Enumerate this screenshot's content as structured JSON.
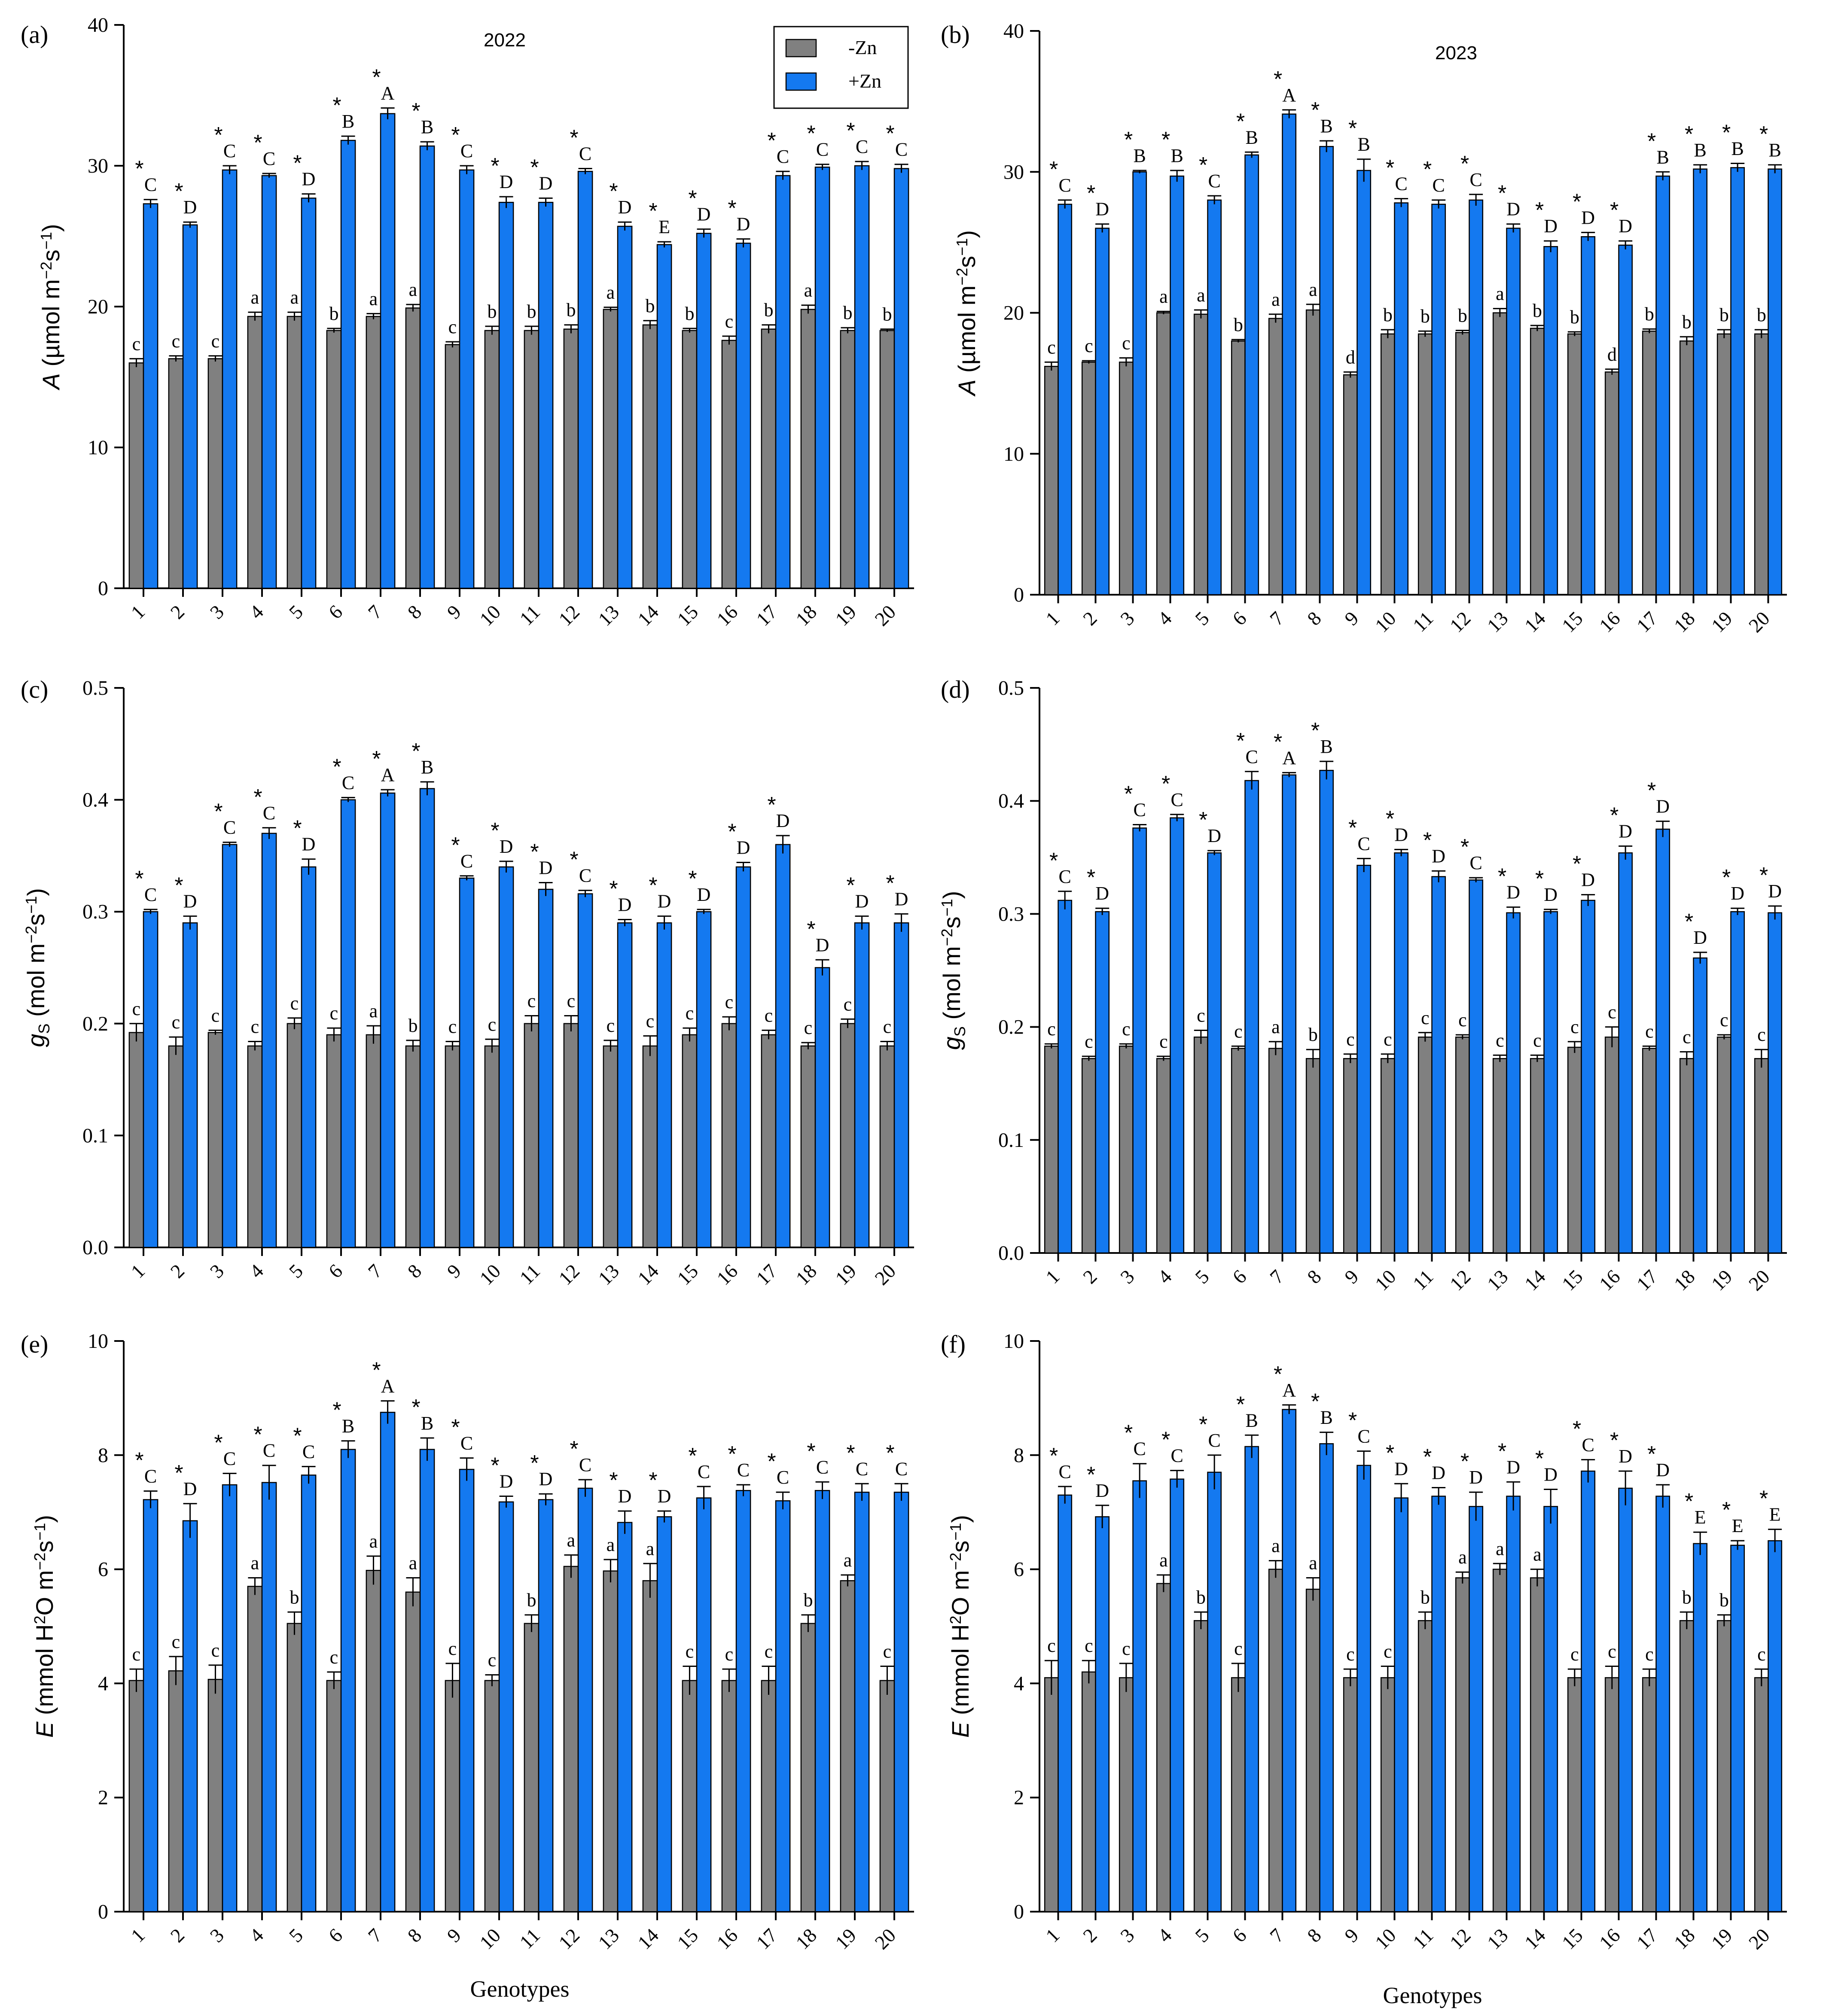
{
  "legend": {
    "minus": "-Zn",
    "plus": "+Zn"
  },
  "colors": {
    "minus": "#808080",
    "plus": "#1479f0",
    "axis": "#000000"
  },
  "x_title": "Genotypes",
  "chart_data": [
    {
      "id": "a",
      "letter": "(a)",
      "year": "2022",
      "type": "bar",
      "ylabel": "A (µmol m⁻² s⁻¹)",
      "ylabel_italic": "A",
      "ylabel_rest": " (µmol m",
      "ylim": [
        0,
        40
      ],
      "yticks": [
        0,
        10,
        20,
        30,
        40
      ],
      "ytick_labels": [
        "0",
        "10",
        "20",
        "30",
        "40"
      ],
      "categories": [
        "1",
        "2",
        "3",
        "4",
        "5",
        "6",
        "7",
        "8",
        "9",
        "10",
        "11",
        "12",
        "13",
        "14",
        "15",
        "16",
        "17",
        "18",
        "19",
        "20"
      ],
      "series": [
        {
          "name": "-Zn",
          "values": [
            16.0,
            16.3,
            16.3,
            19.3,
            19.3,
            18.3,
            19.3,
            19.9,
            17.3,
            18.3,
            18.3,
            18.4,
            19.8,
            18.7,
            18.3,
            17.6,
            18.4,
            19.8,
            18.3,
            18.3
          ],
          "errors": [
            0.3,
            0.2,
            0.2,
            0.3,
            0.3,
            0.15,
            0.2,
            0.25,
            0.2,
            0.3,
            0.3,
            0.3,
            0.15,
            0.3,
            0.15,
            0.3,
            0.3,
            0.3,
            0.2,
            0.1
          ],
          "letters": [
            "c",
            "c",
            "c",
            "a",
            "a",
            "b",
            "a",
            "a",
            "c",
            "b",
            "b",
            "b",
            "a",
            "b",
            "b",
            "c",
            "b",
            "a",
            "b",
            "b"
          ]
        },
        {
          "name": "+Zn",
          "values": [
            27.3,
            25.8,
            29.7,
            29.3,
            27.7,
            31.8,
            33.7,
            31.4,
            29.7,
            27.4,
            27.4,
            29.6,
            25.7,
            24.4,
            25.2,
            24.5,
            29.3,
            29.9,
            30.0,
            29.8
          ],
          "errors": [
            0.3,
            0.2,
            0.3,
            0.15,
            0.3,
            0.3,
            0.4,
            0.3,
            0.3,
            0.4,
            0.3,
            0.2,
            0.3,
            0.2,
            0.3,
            0.3,
            0.3,
            0.2,
            0.3,
            0.3
          ],
          "letters": [
            "C",
            "D",
            "C",
            "C",
            "D",
            "B",
            "A",
            "B",
            "C",
            "D",
            "D",
            "C",
            "D",
            "E",
            "D",
            "D",
            "C",
            "C",
            "C",
            "C"
          ]
        }
      ]
    },
    {
      "id": "b",
      "letter": "(b)",
      "year": "2023",
      "type": "bar",
      "ylabel": "A (µmol m⁻² s⁻¹)",
      "ylabel_italic": "A",
      "ylabel_rest": " (µmol m",
      "ylim": [
        0,
        40
      ],
      "yticks": [
        0,
        10,
        20,
        30,
        40
      ],
      "ytick_labels": [
        "0",
        "10",
        "20",
        "30",
        "40"
      ],
      "categories": [
        "1",
        "2",
        "3",
        "4",
        "5",
        "6",
        "7",
        "8",
        "9",
        "10",
        "11",
        "12",
        "13",
        "14",
        "15",
        "16",
        "17",
        "18",
        "19",
        "20"
      ],
      "series": [
        {
          "name": "-Zn",
          "values": [
            16.2,
            16.5,
            16.5,
            20.0,
            19.9,
            18.0,
            19.6,
            20.2,
            15.6,
            18.5,
            18.5,
            18.6,
            20.0,
            18.9,
            18.5,
            15.8,
            18.7,
            18.0,
            18.5,
            18.5
          ],
          "errors": [
            0.3,
            0.1,
            0.3,
            0.1,
            0.3,
            0.1,
            0.3,
            0.4,
            0.2,
            0.3,
            0.2,
            0.15,
            0.3,
            0.2,
            0.15,
            0.2,
            0.15,
            0.3,
            0.3,
            0.3
          ],
          "letters": [
            "c",
            "c",
            "c",
            "a",
            "a",
            "b",
            "a",
            "a",
            "d",
            "b",
            "b",
            "b",
            "a",
            "b",
            "b",
            "d",
            "b",
            "b",
            "b",
            "b"
          ]
        },
        {
          "name": "+Zn",
          "values": [
            27.7,
            26.0,
            30.0,
            29.7,
            28.0,
            31.2,
            34.1,
            31.8,
            30.1,
            27.8,
            27.7,
            28.0,
            26.0,
            24.7,
            25.4,
            24.8,
            29.7,
            30.2,
            30.3,
            30.2
          ],
          "errors": [
            0.3,
            0.3,
            0.1,
            0.4,
            0.3,
            0.2,
            0.3,
            0.4,
            0.8,
            0.3,
            0.3,
            0.4,
            0.3,
            0.4,
            0.3,
            0.3,
            0.3,
            0.3,
            0.3,
            0.3
          ],
          "letters": [
            "C",
            "D",
            "B",
            "B",
            "C",
            "B",
            "A",
            "B",
            "B",
            "C",
            "C",
            "C",
            "D",
            "D",
            "D",
            "D",
            "B",
            "B",
            "B",
            "B"
          ]
        }
      ]
    },
    {
      "id": "c",
      "letter": "(c)",
      "year": "",
      "type": "bar",
      "ylabel": "gS (mol m⁻² s⁻¹)",
      "ylabel_italic": "g",
      "ylabel_rest": " (mol m",
      "ylim": [
        0,
        0.5
      ],
      "yticks": [
        0,
        0.1,
        0.2,
        0.3,
        0.4,
        0.5
      ],
      "ytick_labels": [
        "0.0",
        "0.1",
        "0.2",
        "0.3",
        "0.4",
        "0.5"
      ],
      "categories": [
        "1",
        "2",
        "3",
        "4",
        "5",
        "6",
        "7",
        "8",
        "9",
        "10",
        "11",
        "12",
        "13",
        "14",
        "15",
        "16",
        "17",
        "18",
        "19",
        "20"
      ],
      "series": [
        {
          "name": "-Zn",
          "values": [
            0.192,
            0.18,
            0.192,
            0.18,
            0.2,
            0.19,
            0.19,
            0.18,
            0.18,
            0.18,
            0.2,
            0.2,
            0.18,
            0.18,
            0.19,
            0.2,
            0.19,
            0.18,
            0.2,
            0.18
          ],
          "errors": [
            0.008,
            0.008,
            0.002,
            0.004,
            0.005,
            0.006,
            0.008,
            0.005,
            0.004,
            0.006,
            0.007,
            0.007,
            0.005,
            0.009,
            0.006,
            0.006,
            0.004,
            0.003,
            0.004,
            0.004
          ],
          "letters": [
            "c",
            "c",
            "c",
            "c",
            "c",
            "c",
            "a",
            "b",
            "c",
            "c",
            "c",
            "c",
            "c",
            "c",
            "c",
            "c",
            "c",
            "c",
            "c",
            "c"
          ]
        },
        {
          "name": "+Zn",
          "values": [
            0.3,
            0.29,
            0.36,
            0.37,
            0.34,
            0.4,
            0.406,
            0.41,
            0.33,
            0.34,
            0.32,
            0.316,
            0.29,
            0.29,
            0.3,
            0.34,
            0.36,
            0.25,
            0.29,
            0.29
          ],
          "errors": [
            0.002,
            0.006,
            0.002,
            0.005,
            0.007,
            0.002,
            0.003,
            0.006,
            0.002,
            0.005,
            0.006,
            0.003,
            0.003,
            0.006,
            0.002,
            0.004,
            0.008,
            0.007,
            0.006,
            0.008
          ],
          "letters": [
            "C",
            "D",
            "C",
            "C",
            "D",
            "C",
            "A",
            "B",
            "C",
            "D",
            "D",
            "C",
            "D",
            "D",
            "D",
            "D",
            "D",
            "D",
            "D",
            "D"
          ]
        }
      ]
    },
    {
      "id": "d",
      "letter": "(d)",
      "year": "",
      "type": "bar",
      "ylabel": "gS (mol m⁻² s⁻¹)",
      "ylabel_italic": "g",
      "ylabel_rest": " (mol m",
      "ylim": [
        0,
        0.5
      ],
      "yticks": [
        0,
        0.1,
        0.2,
        0.3,
        0.4,
        0.5
      ],
      "ytick_labels": [
        "0.0",
        "0.1",
        "0.2",
        "0.3",
        "0.4",
        "0.5"
      ],
      "categories": [
        "1",
        "2",
        "3",
        "4",
        "5",
        "6",
        "7",
        "8",
        "9",
        "10",
        "11",
        "12",
        "13",
        "14",
        "15",
        "16",
        "17",
        "18",
        "19",
        "20"
      ],
      "series": [
        {
          "name": "-Zn",
          "values": [
            0.183,
            0.172,
            0.183,
            0.172,
            0.191,
            0.181,
            0.181,
            0.172,
            0.172,
            0.172,
            0.191,
            0.191,
            0.172,
            0.172,
            0.182,
            0.191,
            0.181,
            0.172,
            0.191,
            0.172
          ],
          "errors": [
            0.002,
            0.002,
            0.002,
            0.002,
            0.006,
            0.002,
            0.006,
            0.008,
            0.004,
            0.004,
            0.004,
            0.002,
            0.003,
            0.003,
            0.005,
            0.009,
            0.002,
            0.006,
            0.002,
            0.008
          ],
          "letters": [
            "c",
            "c",
            "c",
            "c",
            "c",
            "c",
            "a",
            "b",
            "c",
            "c",
            "c",
            "c",
            "c",
            "c",
            "c",
            "c",
            "c",
            "c",
            "c",
            "c"
          ]
        },
        {
          "name": "+Zn",
          "values": [
            0.312,
            0.302,
            0.376,
            0.385,
            0.354,
            0.418,
            0.423,
            0.427,
            0.343,
            0.354,
            0.333,
            0.33,
            0.301,
            0.302,
            0.312,
            0.354,
            0.375,
            0.261,
            0.302,
            0.301
          ],
          "errors": [
            0.008,
            0.003,
            0.003,
            0.003,
            0.002,
            0.008,
            0.002,
            0.008,
            0.006,
            0.003,
            0.005,
            0.002,
            0.005,
            0.002,
            0.005,
            0.006,
            0.007,
            0.005,
            0.003,
            0.006
          ],
          "letters": [
            "C",
            "D",
            "C",
            "C",
            "D",
            "C",
            "A",
            "B",
            "C",
            "D",
            "D",
            "C",
            "D",
            "D",
            "D",
            "D",
            "D",
            "D",
            "D",
            "D"
          ]
        }
      ]
    },
    {
      "id": "e",
      "letter": "(e)",
      "year": "",
      "type": "bar",
      "ylabel": "E (mmol H²O m⁻² s⁻¹)",
      "ylabel_italic": "E",
      "ylabel_rest": " (mmol H",
      "ylim": [
        0,
        10
      ],
      "yticks": [
        0,
        2,
        4,
        6,
        8,
        10
      ],
      "ytick_labels": [
        "0",
        "2",
        "4",
        "6",
        "8",
        "10"
      ],
      "categories": [
        "1",
        "2",
        "3",
        "4",
        "5",
        "6",
        "7",
        "8",
        "9",
        "10",
        "11",
        "12",
        "13",
        "14",
        "15",
        "16",
        "17",
        "18",
        "19",
        "20"
      ],
      "series": [
        {
          "name": "-Zn",
          "values": [
            4.05,
            4.22,
            4.07,
            5.7,
            5.05,
            4.05,
            5.98,
            5.6,
            4.05,
            4.05,
            5.05,
            6.05,
            5.97,
            5.8,
            4.05,
            4.05,
            4.05,
            5.05,
            5.8,
            4.05
          ],
          "errors": [
            0.2,
            0.25,
            0.25,
            0.15,
            0.2,
            0.15,
            0.25,
            0.25,
            0.3,
            0.1,
            0.15,
            0.2,
            0.2,
            0.3,
            0.25,
            0.2,
            0.25,
            0.15,
            0.1,
            0.25
          ],
          "letters": [
            "c",
            "c",
            "c",
            "a",
            "b",
            "c",
            "a",
            "a",
            "c",
            "c",
            "b",
            "a",
            "a",
            "a",
            "c",
            "c",
            "c",
            "b",
            "a",
            "c"
          ]
        },
        {
          "name": "+Zn",
          "values": [
            7.22,
            6.85,
            7.48,
            7.52,
            7.65,
            8.1,
            8.75,
            8.1,
            7.75,
            7.18,
            7.22,
            7.42,
            6.82,
            6.92,
            7.25,
            7.38,
            7.2,
            7.38,
            7.35,
            7.35
          ],
          "errors": [
            0.15,
            0.3,
            0.2,
            0.3,
            0.15,
            0.15,
            0.2,
            0.2,
            0.2,
            0.1,
            0.1,
            0.15,
            0.2,
            0.1,
            0.2,
            0.1,
            0.15,
            0.15,
            0.15,
            0.15
          ],
          "letters": [
            "C",
            "D",
            "C",
            "C",
            "C",
            "B",
            "A",
            "B",
            "C",
            "D",
            "D",
            "C",
            "D",
            "D",
            "C",
            "C",
            "C",
            "C",
            "C",
            "C"
          ]
        }
      ]
    },
    {
      "id": "f",
      "letter": "(f)",
      "year": "",
      "type": "bar",
      "ylabel": "E (mmol H²O m⁻² s⁻¹)",
      "ylabel_italic": "E",
      "ylabel_rest": " (mmol H",
      "ylim": [
        0,
        10
      ],
      "yticks": [
        0,
        2,
        4,
        6,
        8,
        10
      ],
      "ytick_labels": [
        "0",
        "2",
        "4",
        "6",
        "8",
        "10"
      ],
      "categories": [
        "1",
        "2",
        "3",
        "4",
        "5",
        "6",
        "7",
        "8",
        "9",
        "10",
        "11",
        "12",
        "13",
        "14",
        "15",
        "16",
        "17",
        "18",
        "19",
        "20"
      ],
      "series": [
        {
          "name": "-Zn",
          "values": [
            4.1,
            4.2,
            4.1,
            5.75,
            5.1,
            4.1,
            6.0,
            5.65,
            4.1,
            4.1,
            5.1,
            5.85,
            6.0,
            5.85,
            4.1,
            4.1,
            4.1,
            5.1,
            5.1,
            4.1
          ],
          "errors": [
            0.3,
            0.2,
            0.25,
            0.15,
            0.15,
            0.25,
            0.15,
            0.2,
            0.15,
            0.2,
            0.15,
            0.1,
            0.1,
            0.15,
            0.15,
            0.2,
            0.15,
            0.15,
            0.1,
            0.15
          ],
          "letters": [
            "c",
            "c",
            "c",
            "a",
            "b",
            "c",
            "a",
            "a",
            "c",
            "c",
            "b",
            "a",
            "a",
            "a",
            "c",
            "c",
            "c",
            "b",
            "b",
            "c"
          ]
        },
        {
          "name": "+Zn",
          "values": [
            7.3,
            6.92,
            7.55,
            7.58,
            7.7,
            8.15,
            8.8,
            8.2,
            7.82,
            7.25,
            7.28,
            7.1,
            7.28,
            7.1,
            7.72,
            7.42,
            7.28,
            6.45,
            6.42,
            6.5
          ],
          "errors": [
            0.15,
            0.2,
            0.3,
            0.15,
            0.3,
            0.2,
            0.08,
            0.2,
            0.25,
            0.25,
            0.15,
            0.25,
            0.25,
            0.3,
            0.2,
            0.3,
            0.2,
            0.2,
            0.08,
            0.2
          ],
          "letters": [
            "C",
            "D",
            "C",
            "C",
            "C",
            "B",
            "A",
            "B",
            "C",
            "D",
            "D",
            "D",
            "D",
            "D",
            "C",
            "D",
            "D",
            "E",
            "E",
            "E"
          ]
        }
      ]
    }
  ]
}
